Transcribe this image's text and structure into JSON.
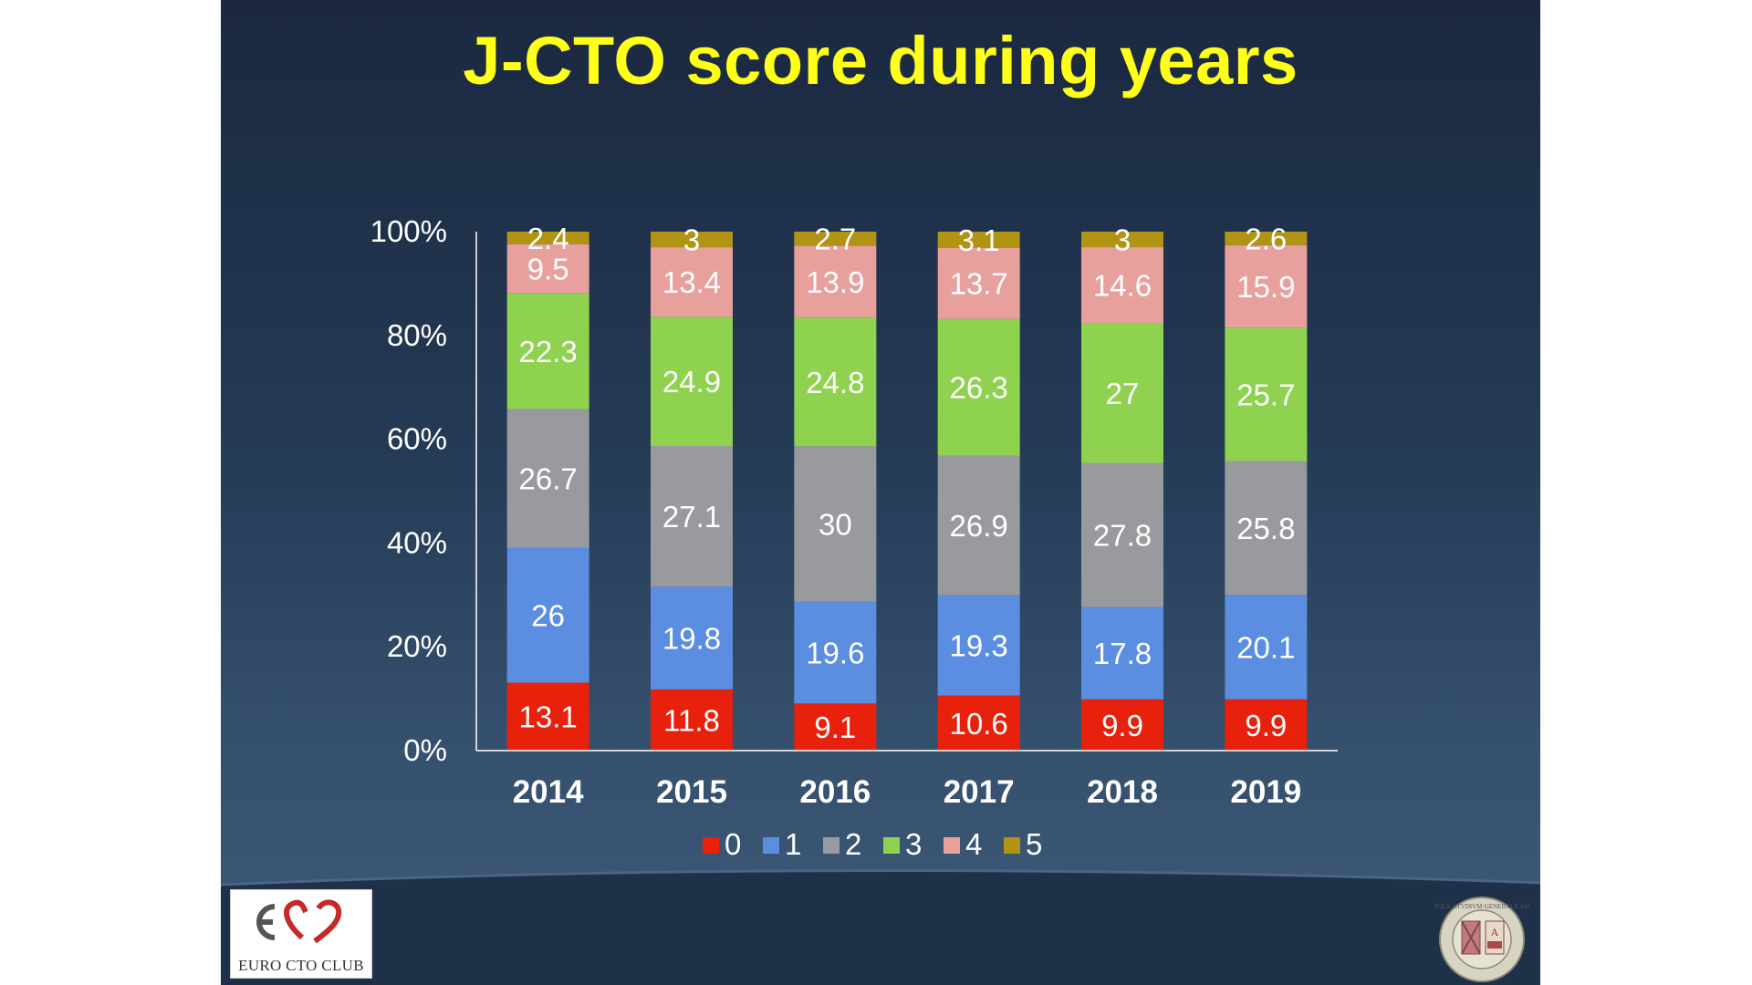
{
  "slide": {
    "title": "J-CTO score during years",
    "background_top": "#1b2840",
    "background_bottom": "#3e5a78"
  },
  "logo": {
    "text": "EURO CTO CLUB"
  },
  "seal": {
    "text": "SIGILL·STVDIVM·GENERALE·1434"
  },
  "chart_data": {
    "type": "bar",
    "stacked": "percent",
    "title": "",
    "xlabel": "",
    "ylabel": "",
    "categories": [
      "2014",
      "2015",
      "2016",
      "2017",
      "2018",
      "2019"
    ],
    "y_ticks": [
      "0%",
      "20%",
      "40%",
      "60%",
      "80%",
      "100%"
    ],
    "ylim": [
      0,
      100
    ],
    "legend_position": "bottom",
    "series": [
      {
        "name": "0",
        "color": "#e8210d",
        "values": [
          13.1,
          11.8,
          9.1,
          10.6,
          9.9,
          9.9
        ]
      },
      {
        "name": "1",
        "color": "#5b8de1",
        "values": [
          26,
          19.8,
          19.6,
          19.3,
          17.8,
          20.1
        ]
      },
      {
        "name": "2",
        "color": "#999a9d",
        "values": [
          26.7,
          27.1,
          30,
          26.9,
          27.8,
          25.8
        ]
      },
      {
        "name": "3",
        "color": "#8ed24f",
        "values": [
          22.3,
          24.9,
          24.8,
          26.3,
          27,
          25.7
        ]
      },
      {
        "name": "4",
        "color": "#e8a09d",
        "values": [
          9.5,
          13.4,
          13.9,
          13.7,
          14.6,
          15.9
        ]
      },
      {
        "name": "5",
        "color": "#b19413",
        "values": [
          2.4,
          3,
          2.7,
          3.1,
          3,
          2.6
        ]
      }
    ]
  }
}
